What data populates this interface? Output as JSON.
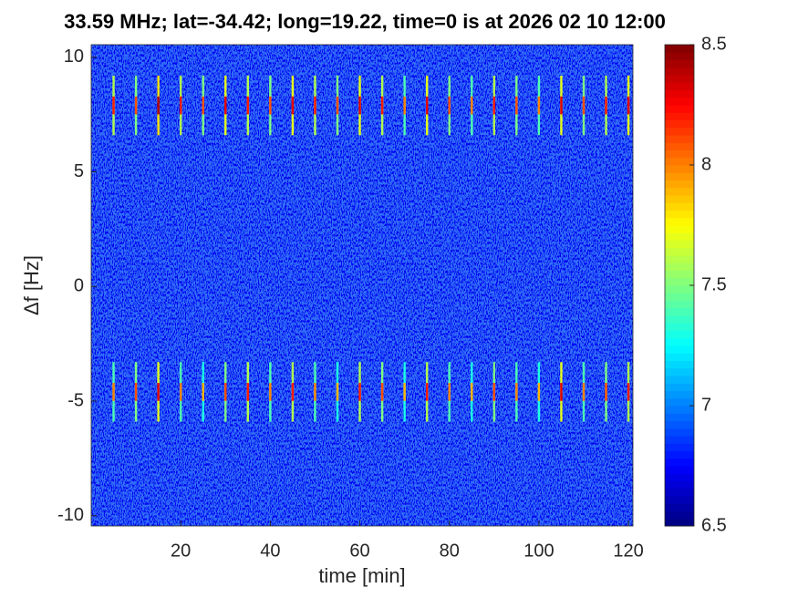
{
  "chart_data": {
    "type": "heatmap",
    "title": "33.59 MHz;  lat=-34.42; long=19.22, time=0 is at 2026 02 10 12:00",
    "xlabel": "time [min]",
    "ylabel": "Δf [Hz]",
    "xlim": [
      0,
      121
    ],
    "ylim": [
      -10.45,
      10.55
    ],
    "xticks": [
      20,
      40,
      60,
      80,
      100,
      120
    ],
    "yticks": [
      -10,
      -5,
      0,
      5,
      10
    ],
    "clim": [
      6.5,
      8.5
    ],
    "cticks": [
      6.5,
      7,
      7.5,
      8,
      8.5
    ],
    "colormap": "jet",
    "background_level": 6.72,
    "pulse_span": 1.3,
    "x": [
      5,
      10,
      15,
      20,
      25,
      30,
      35,
      40,
      45,
      50,
      55,
      60,
      65,
      70,
      75,
      80,
      85,
      90,
      95,
      100,
      105,
      110,
      115,
      120
    ],
    "pulses": [
      {
        "df": 7.9,
        "values": [
          8.2,
          8.1,
          8.4,
          8.2,
          8.1,
          8.3,
          8.2,
          8.1,
          8.3,
          8.2,
          8.1,
          8.3,
          8.2,
          8.0,
          8.3,
          8.1,
          8.0,
          8.2,
          8.1,
          8.0,
          8.3,
          8.1,
          8.2,
          8.3
        ]
      },
      {
        "df": -4.6,
        "values": [
          8.0,
          8.1,
          8.3,
          8.0,
          7.9,
          8.1,
          8.2,
          8.0,
          8.2,
          8.0,
          7.9,
          8.2,
          8.1,
          7.9,
          8.2,
          8.0,
          7.9,
          8.1,
          8.0,
          7.9,
          8.3,
          8.0,
          8.1,
          8.2
        ]
      }
    ]
  }
}
